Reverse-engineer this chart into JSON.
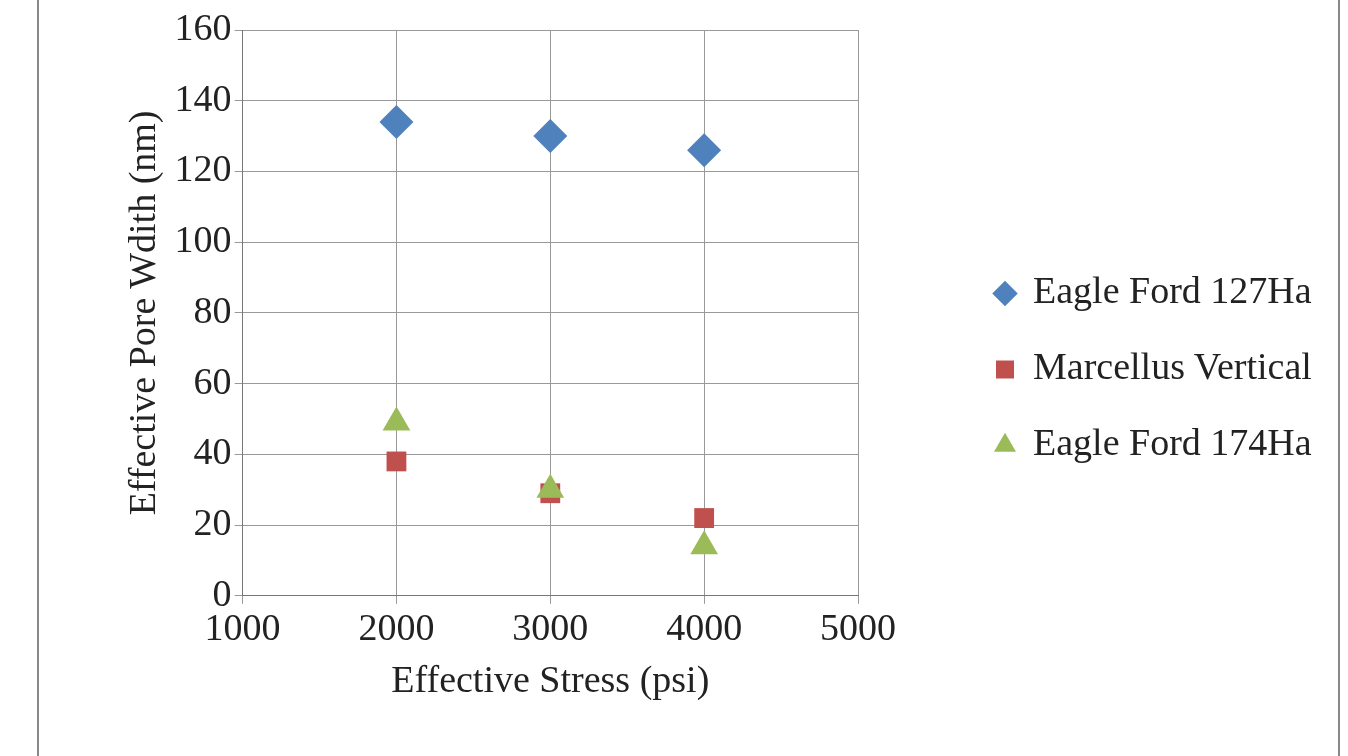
{
  "chart_data": {
    "type": "scatter",
    "xlabel": "Effective Stress (psi)",
    "ylabel": "Effective Pore Wdith (nm)",
    "x": [
      2000,
      3000,
      4000
    ],
    "series": [
      {
        "name": "Eagle Ford 127Ha",
        "color": "#4f81bd",
        "marker": "diamond",
        "values": [
          134,
          130,
          126
        ]
      },
      {
        "name": "Marcellus Vertical",
        "color": "#c0504d",
        "marker": "square",
        "values": [
          38,
          29,
          22
        ]
      },
      {
        "name": "Eagle Ford 174Ha",
        "color": "#9bbb59",
        "marker": "triangle",
        "values": [
          49,
          30,
          14
        ]
      }
    ],
    "xlim": [
      1000,
      5000
    ],
    "xticks": [
      1000,
      2000,
      3000,
      4000,
      5000
    ],
    "ylim": [
      0,
      160
    ],
    "yticks": [
      0,
      20,
      40,
      60,
      80,
      100,
      120,
      140,
      160
    ],
    "grid": true,
    "legend": "right"
  }
}
